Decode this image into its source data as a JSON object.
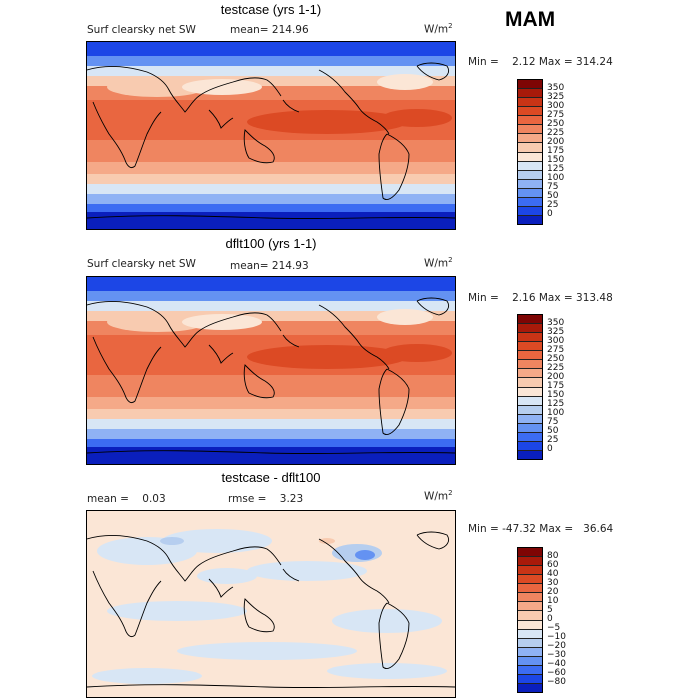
{
  "season": "MAM",
  "colors": {
    "sw_scale": [
      "#00008c",
      "#0a1fbd",
      "#1c46e6",
      "#3c6cf2",
      "#6492f2",
      "#8fb2f4",
      "#b6ceef",
      "#d8e6f5",
      "#fbe6d6",
      "#f8cbb0",
      "#f5a988",
      "#ef8560",
      "#e96640",
      "#dc4a24",
      "#c93416",
      "#a81a0a",
      "#7e0504"
    ],
    "diff_scale": [
      "#00008c",
      "#0a1fbd",
      "#1c46e6",
      "#3c6cf2",
      "#6492f2",
      "#8fb2f4",
      "#b6ceef",
      "#d8e6f5",
      "#fbe6d6",
      "#f8cbb0",
      "#f5a988",
      "#ef8560",
      "#e96640",
      "#dc4a24",
      "#c93416",
      "#a81a0a",
      "#7e0504"
    ]
  },
  "panels": [
    {
      "title": "testcase (yrs 1-1)",
      "left_label": "Surf clearsky net SW",
      "stat_label": "mean= 214.96",
      "unit": "W/m",
      "unit_sup": "2",
      "minmax": "Min =    2.12 Max = 314.24",
      "cb_ticks": [
        "350",
        "325",
        "300",
        "275",
        "250",
        "225",
        "200",
        "175",
        "150",
        "125",
        "100",
        "75",
        "50",
        "25",
        "0"
      ]
    },
    {
      "title": "dflt100 (yrs 1-1)",
      "left_label": "Surf clearsky net SW",
      "stat_label": "mean= 214.93",
      "unit": "W/m",
      "unit_sup": "2",
      "minmax": "Min =    2.16 Max = 313.48",
      "cb_ticks": [
        "350",
        "325",
        "300",
        "275",
        "250",
        "225",
        "200",
        "175",
        "150",
        "125",
        "100",
        "75",
        "50",
        "25",
        "0"
      ]
    },
    {
      "title": "testcase - dflt100",
      "left_label": "mean =    0.03",
      "stat_label": "rmse =    3.23",
      "unit": "W/m",
      "unit_sup": "2",
      "minmax": "Min = -47.32 Max =   36.64",
      "cb_ticks": [
        "80",
        "60",
        "40",
        "30",
        "20",
        "10",
        "5",
        "0",
        "−5",
        "−10",
        "−20",
        "−30",
        "−40",
        "−60",
        "−80"
      ]
    }
  ],
  "chart_data": [
    {
      "type": "heatmap",
      "title": "testcase (yrs 1-1)",
      "variable": "Surf clearsky net SW",
      "units": "W/m2",
      "mean": 214.96,
      "min": 2.12,
      "max": 314.24,
      "colorbar_levels": [
        0,
        25,
        50,
        75,
        100,
        125,
        150,
        175,
        200,
        225,
        250,
        275,
        300,
        325,
        350
      ]
    },
    {
      "type": "heatmap",
      "title": "dflt100 (yrs 1-1)",
      "variable": "Surf clearsky net SW",
      "units": "W/m2",
      "mean": 214.93,
      "min": 2.16,
      "max": 313.48,
      "colorbar_levels": [
        0,
        25,
        50,
        75,
        100,
        125,
        150,
        175,
        200,
        225,
        250,
        275,
        300,
        325,
        350
      ]
    },
    {
      "type": "heatmap",
      "title": "testcase - dflt100",
      "units": "W/m2",
      "mean": 0.03,
      "rmse": 3.23,
      "min": -47.32,
      "max": 36.64,
      "colorbar_levels": [
        -80,
        -60,
        -40,
        -30,
        -20,
        -10,
        -5,
        0,
        5,
        10,
        20,
        30,
        40,
        60,
        80
      ]
    }
  ]
}
